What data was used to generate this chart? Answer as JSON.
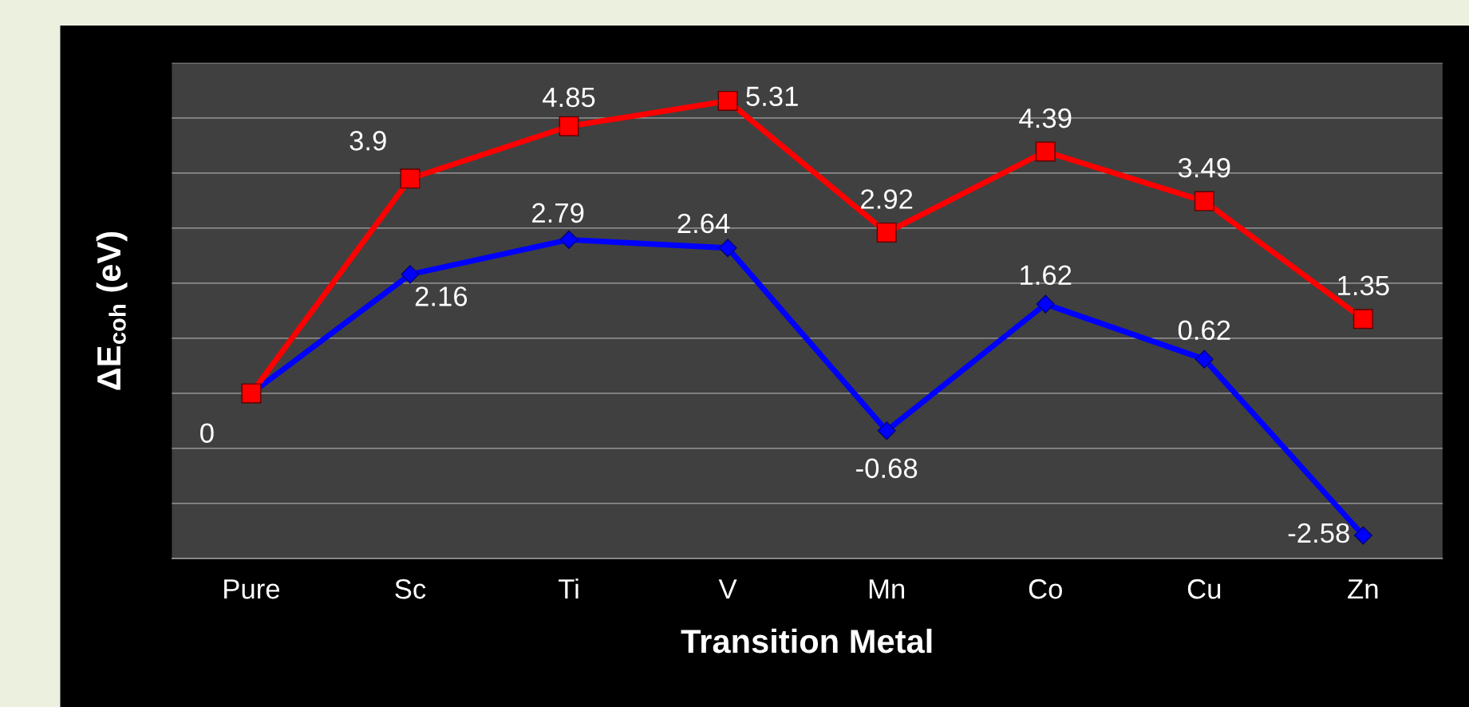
{
  "chart_data": {
    "type": "line",
    "xlabel": "Transition Metal",
    "ylabel": "ΔE$_{coh}$ (eV)",
    "categories": [
      "Pure",
      "Sc",
      "Ti",
      "V",
      "Mn",
      "Co",
      "Cu",
      "Zn"
    ],
    "series": [
      {
        "color": "#ff0000",
        "marker": "square",
        "values": [
          0,
          3.9,
          4.85,
          5.31,
          2.92,
          4.39,
          3.49,
          1.35
        ],
        "value_labels": [
          null,
          "3.9",
          "4.85",
          "5.31",
          "2.92",
          "4.39",
          "3.49",
          "1.35"
        ]
      },
      {
        "color": "#0000ff",
        "marker": "diamond",
        "values": [
          0,
          2.16,
          2.79,
          2.64,
          -0.68,
          1.62,
          0.62,
          -2.58
        ],
        "value_labels": [
          "0",
          "2.16",
          "2.79",
          "2.64",
          "-0.68",
          "1.62",
          "0.62",
          "-2.58"
        ]
      }
    ],
    "ylim": [
      -3,
      6
    ],
    "yticks": [
      {
        "value": -3,
        "label": null
      },
      {
        "value": -2,
        "label": null
      },
      {
        "value": -1,
        "label": null
      },
      {
        "value": 0,
        "label": null
      },
      {
        "value": 1,
        "label": null
      },
      {
        "value": 2,
        "label": null
      },
      {
        "value": 3,
        "label": null
      },
      {
        "value": 4,
        "label": null
      },
      {
        "value": 5,
        "label": null
      },
      {
        "value": 6,
        "label": null
      }
    ],
    "tick_labels": "x",
    "grid": "y",
    "legend": false
  }
}
